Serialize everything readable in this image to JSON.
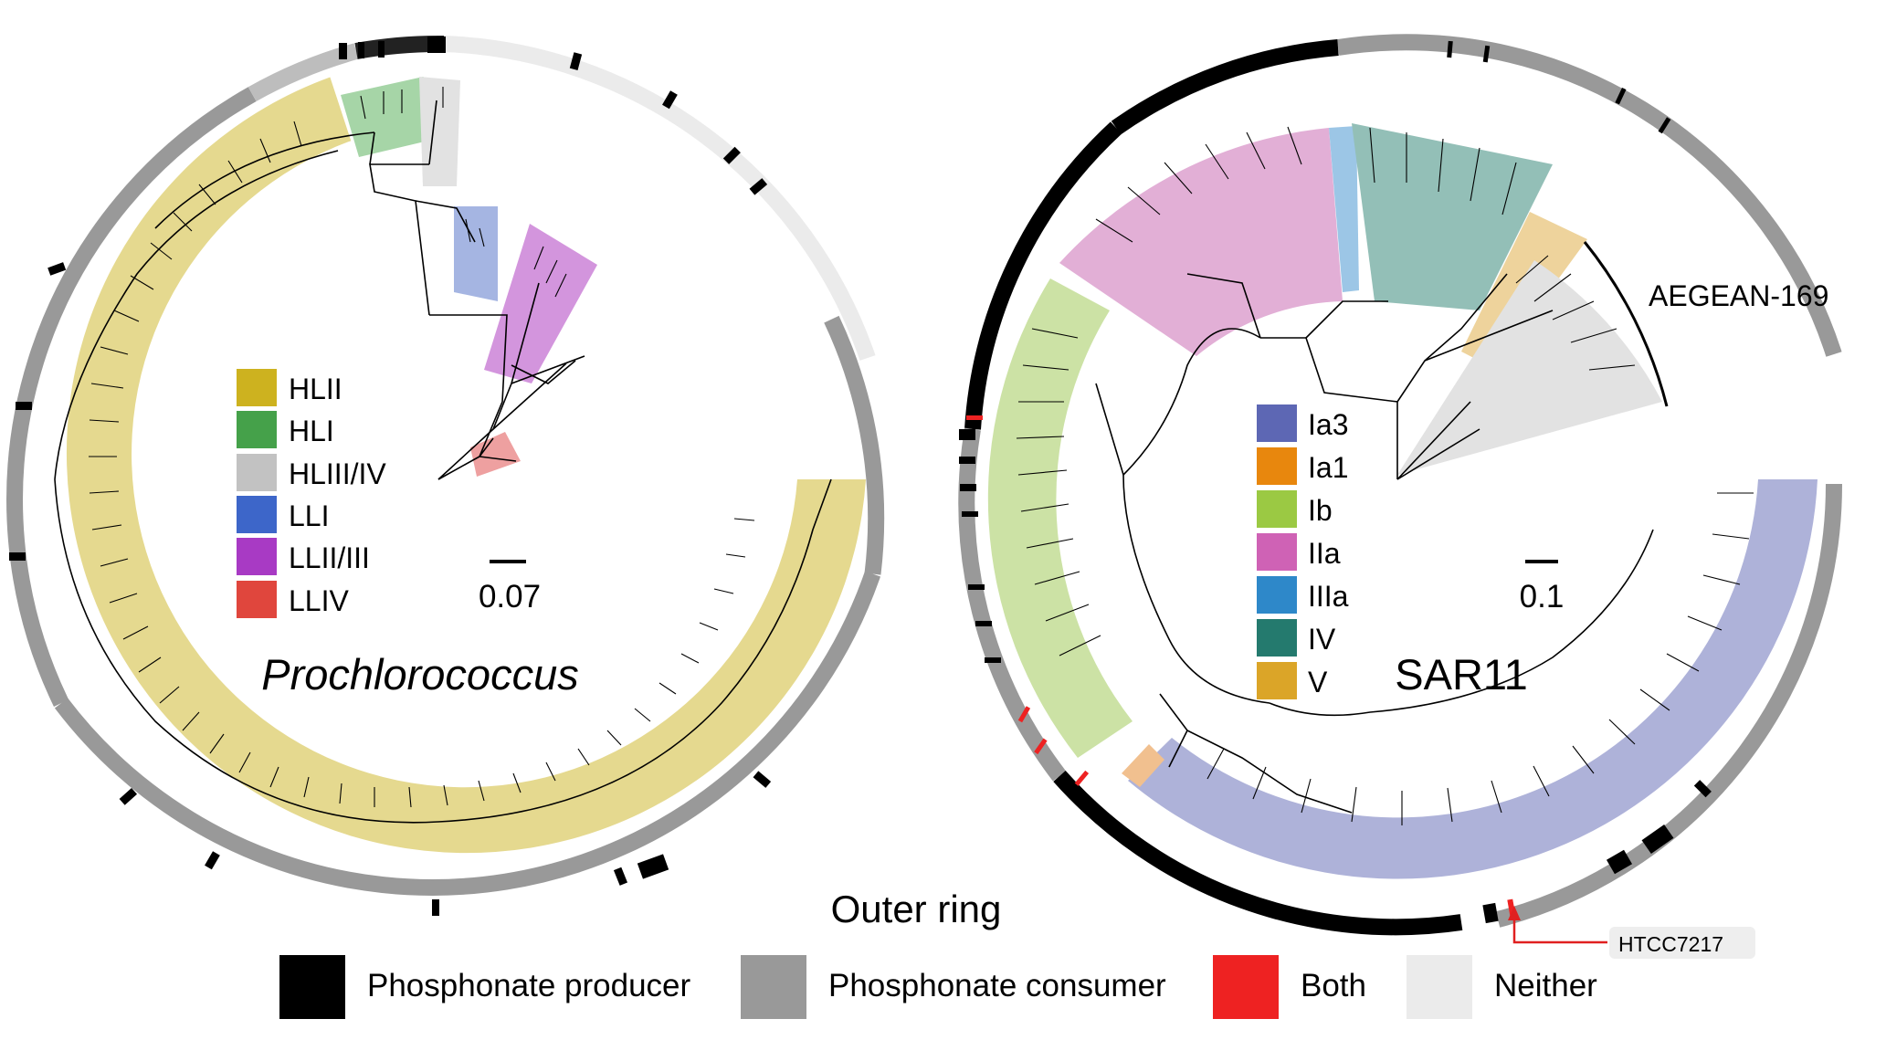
{
  "panels": [
    {
      "id": "prochlorococcus",
      "title": "Prochlorococcus",
      "scale_bar_label": "0.07",
      "legend": [
        {
          "label": "HLII",
          "color": "#cdb21f"
        },
        {
          "label": "HLI",
          "color": "#45a14a"
        },
        {
          "label": "HLIII/IV",
          "color": "#c2c2c2"
        },
        {
          "label": "LLI",
          "color": "#3d66c9"
        },
        {
          "label": "LLII/III",
          "color": "#a83ac4"
        },
        {
          "label": "LLIV",
          "color": "#e0463d"
        }
      ]
    },
    {
      "id": "sar11",
      "title": "SAR11",
      "scale_bar_label": "0.1",
      "clade_annotation": "AEGEAN-169",
      "callout_label": "HTCC7217",
      "legend": [
        {
          "label": "Ia3",
          "color": "#5d67b4"
        },
        {
          "label": "Ia1",
          "color": "#e8870d"
        },
        {
          "label": "Ib",
          "color": "#9bc943"
        },
        {
          "label": "IIa",
          "color": "#cf62b5"
        },
        {
          "label": "IIIa",
          "color": "#2e88c9"
        },
        {
          "label": "IV",
          "color": "#247a6e"
        },
        {
          "label": "V",
          "color": "#dba528"
        }
      ]
    }
  ],
  "outer_ring_legend": {
    "title": "Outer ring",
    "items": [
      {
        "label": "Phosphonate producer",
        "color": "#000000"
      },
      {
        "label": "Phosphonate consumer",
        "color": "#999999"
      },
      {
        "label": "Both",
        "color": "#ee2222"
      },
      {
        "label": "Neither",
        "color": "#ebebeb"
      }
    ]
  }
}
